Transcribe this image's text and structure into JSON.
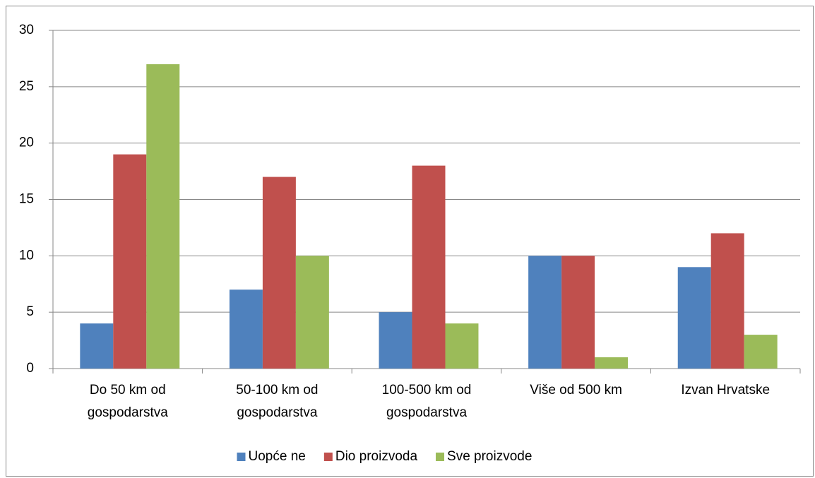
{
  "chart_data": {
    "type": "bar",
    "categories": [
      "Do 50 km od gospodarstva",
      "50-100 km od gospodarstva",
      "100-500 km od gospodarstva",
      "Više od 500 km",
      "Izvan Hrvatske"
    ],
    "series": [
      {
        "name": "Uopće ne",
        "color": "#4f81bd",
        "values": [
          4,
          7,
          5,
          10,
          9
        ]
      },
      {
        "name": "Dio proizvoda",
        "color": "#c0504d",
        "values": [
          19,
          17,
          18,
          10,
          12
        ]
      },
      {
        "name": "Sve proizvode",
        "color": "#9bbb59",
        "values": [
          27,
          10,
          4,
          1,
          3
        ]
      }
    ],
    "ylim": [
      0,
      30
    ],
    "yticks": [
      0,
      5,
      10,
      15,
      20,
      25,
      30
    ],
    "grid": true,
    "legend": "bottom"
  }
}
